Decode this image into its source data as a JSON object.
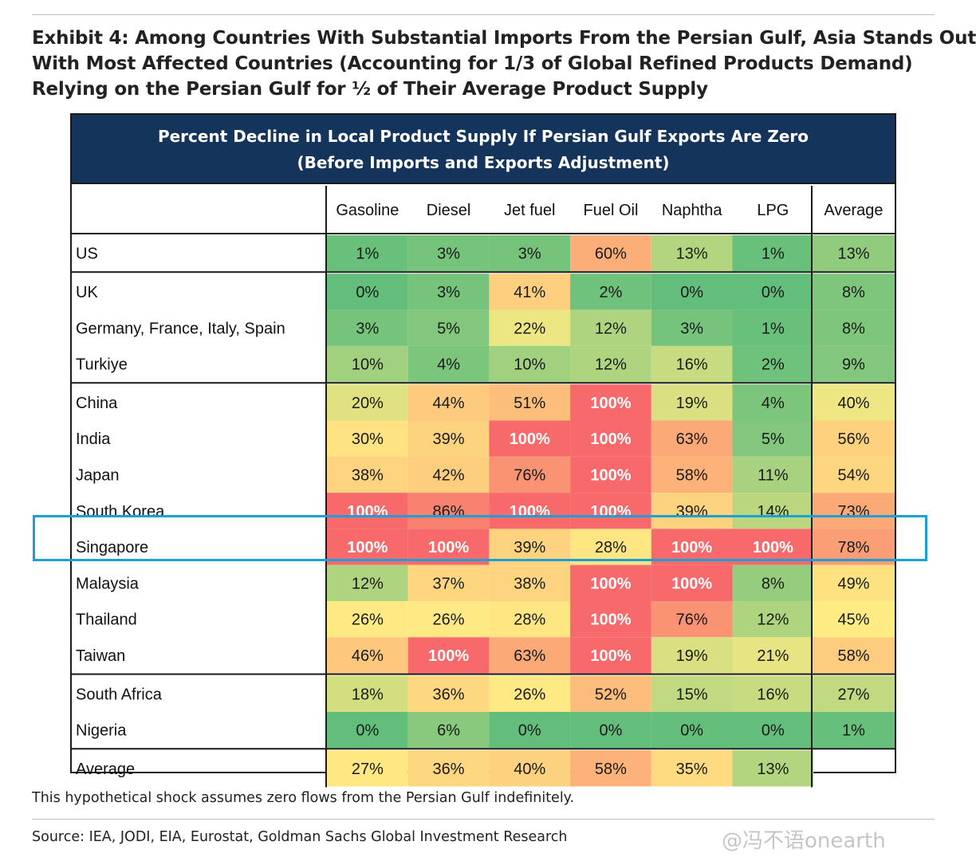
{
  "exhibit": {
    "title_lines": [
      "Exhibit 4: Among Countries With Substantial Imports From the Persian Gulf, Asia Stands Out",
      "With Most Affected Countries (Accounting for 1/3 of Global Refined Products Demand)",
      "Relying on the Persian Gulf for ½ of Their Average Product Supply"
    ],
    "note": "This hypothetical shock assumes zero flows from the Persian Gulf indefinitely.",
    "source": "Source: IEA, JODI, EIA, Eurostat, Goldman Sachs Global Investment Research",
    "watermark": "@冯不语onearth"
  },
  "colors": {
    "header_band": "#14345c",
    "highlight_outline": "#1b9fd8",
    "scale_low": "#63be7b",
    "scale_mid": "#ffeb84",
    "scale_high": "#f8696b"
  },
  "chart_data": {
    "type": "table",
    "title_lines": [
      "Percent Decline in Local Product Supply If Persian Gulf Exports Are Zero",
      "(Before Imports and Exports Adjustment)"
    ],
    "columns": [
      "Gasoline",
      "Diesel",
      "Jet fuel",
      "Fuel Oil",
      "Naphtha",
      "LPG",
      "Average"
    ],
    "groups": [
      {
        "rows": [
          {
            "label": "US",
            "values": [
              1,
              3,
              3,
              60,
              13,
              1,
              13
            ]
          }
        ]
      },
      {
        "rows": [
          {
            "label": "UK",
            "values": [
              0,
              3,
              41,
              2,
              0,
              0,
              8
            ]
          },
          {
            "label": "Germany, France, Italy, Spain",
            "values": [
              3,
              5,
              22,
              12,
              3,
              1,
              8
            ]
          },
          {
            "label": "Turkiye",
            "values": [
              10,
              4,
              10,
              12,
              16,
              2,
              9
            ]
          }
        ]
      },
      {
        "rows": [
          {
            "label": "China",
            "values": [
              20,
              44,
              51,
              100,
              19,
              4,
              40
            ]
          },
          {
            "label": "India",
            "values": [
              30,
              39,
              100,
              100,
              63,
              5,
              56
            ]
          },
          {
            "label": "Japan",
            "values": [
              38,
              42,
              76,
              100,
              58,
              11,
              54
            ]
          },
          {
            "label": "South Korea",
            "values": [
              100,
              86,
              100,
              100,
              39,
              14,
              73
            ]
          },
          {
            "label": "Singapore",
            "values": [
              100,
              100,
              39,
              28,
              100,
              100,
              78
            ],
            "highlighted": true
          },
          {
            "label": "Malaysia",
            "values": [
              12,
              37,
              38,
              100,
              100,
              8,
              49
            ]
          },
          {
            "label": "Thailand",
            "values": [
              26,
              26,
              28,
              100,
              76,
              12,
              45
            ]
          },
          {
            "label": "Taiwan",
            "values": [
              46,
              100,
              63,
              100,
              19,
              21,
              58
            ]
          }
        ]
      },
      {
        "rows": [
          {
            "label": "South Africa",
            "values": [
              18,
              36,
              26,
              52,
              15,
              16,
              27
            ]
          },
          {
            "label": "Nigeria",
            "values": [
              0,
              6,
              0,
              0,
              0,
              0,
              1
            ]
          }
        ]
      },
      {
        "rows": [
          {
            "label": "Average",
            "values": [
              27,
              36,
              40,
              58,
              35,
              13,
              null
            ]
          }
        ]
      }
    ],
    "unit_suffix": "%"
  }
}
